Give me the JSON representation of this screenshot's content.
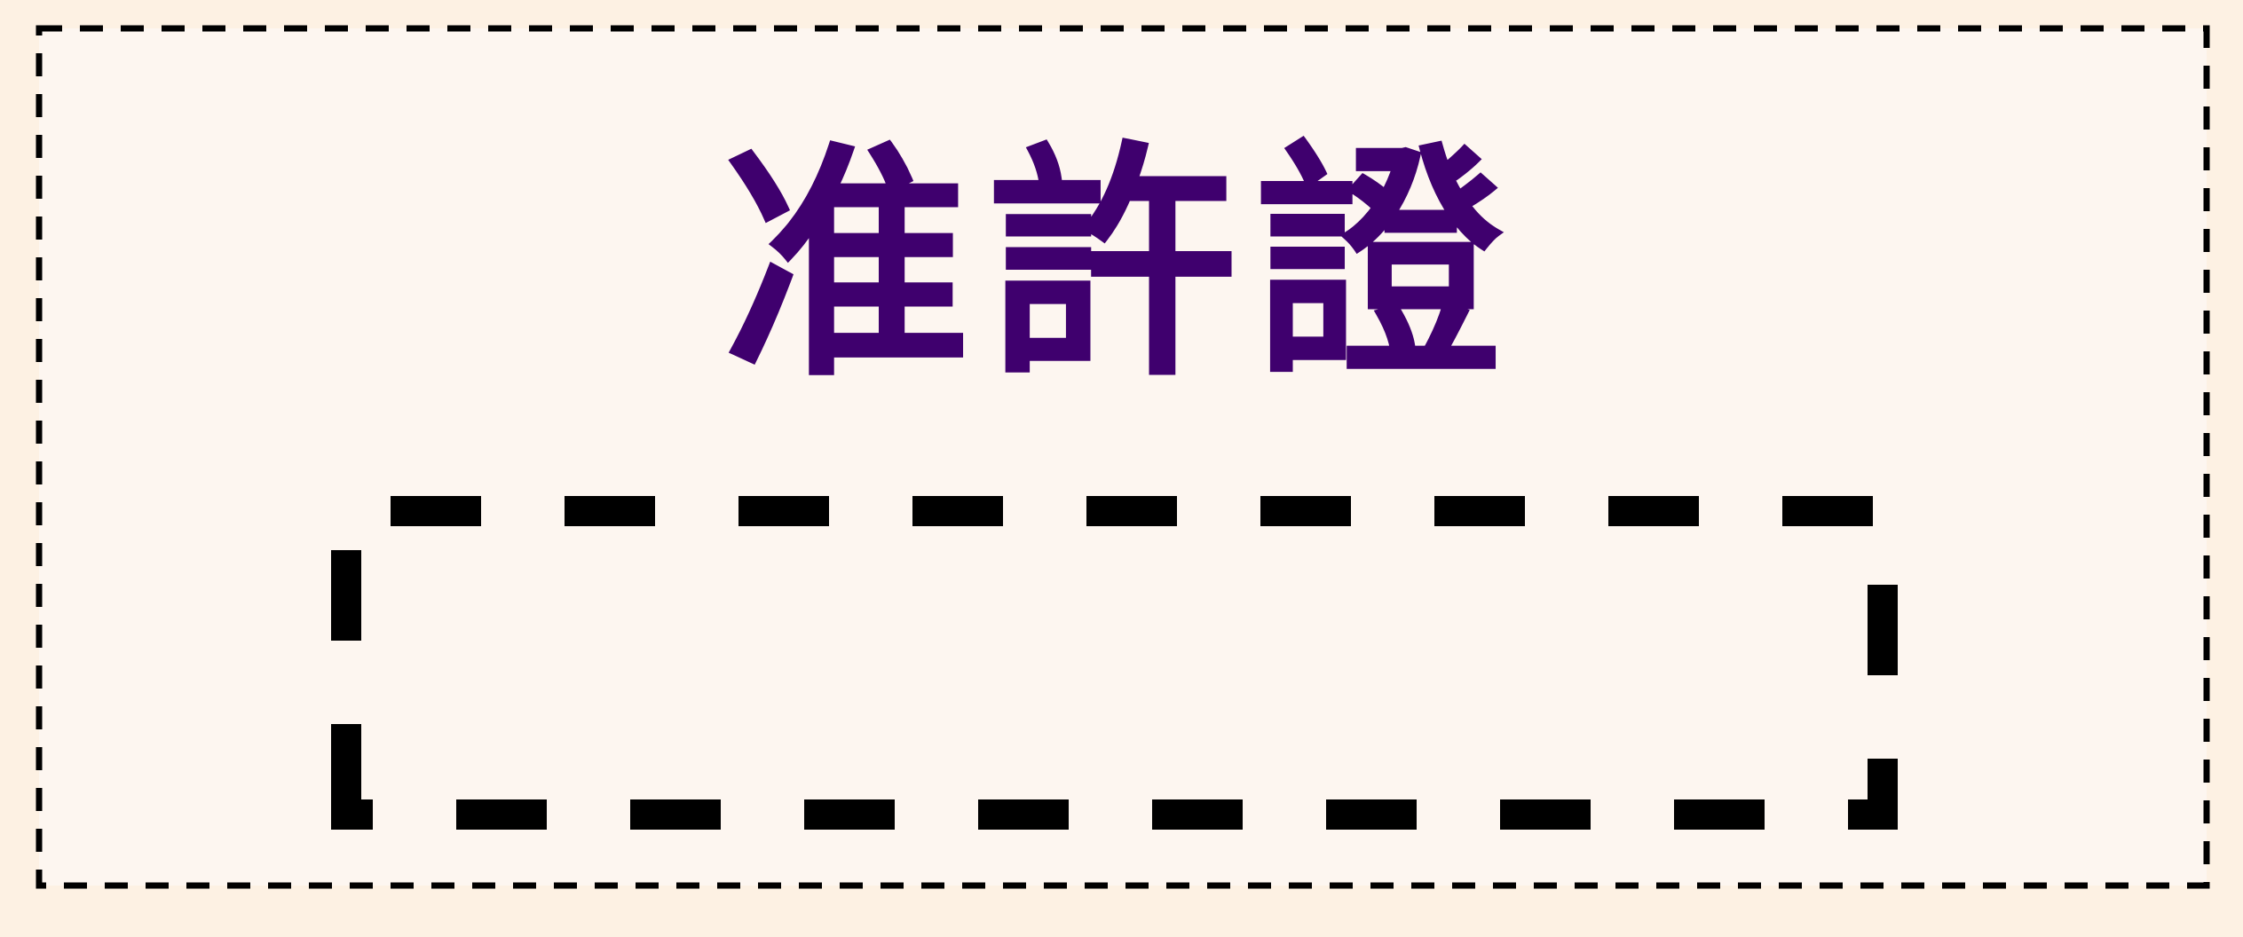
{
  "title": "准許證",
  "colors": {
    "background": "#fdf1e3",
    "card": "#fdf6f0",
    "title": "#3f006e",
    "border": "#000000"
  }
}
